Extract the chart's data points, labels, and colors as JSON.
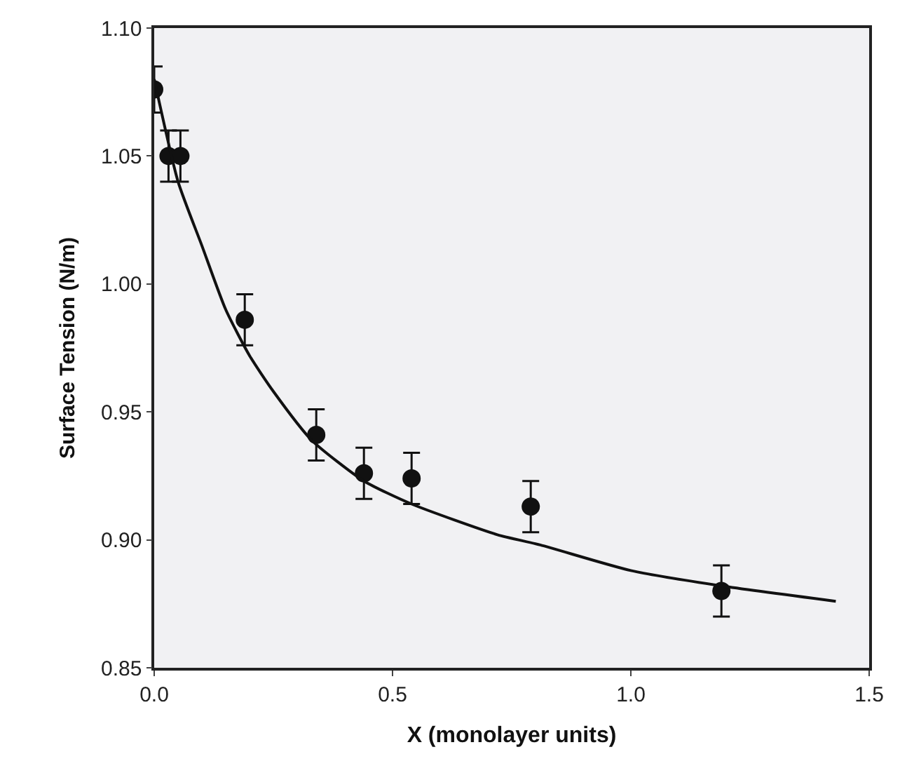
{
  "chart_data": {
    "type": "scatter",
    "xlabel": "X (monolayer units)",
    "ylabel": "Surface Tension (N/m)",
    "xlim": [
      0,
      1.5
    ],
    "xticks": [
      {
        "value": 0,
        "label": "0.0"
      },
      0.5,
      {
        "value": 1,
        "label": "1.0"
      },
      1.5
    ],
    "ylim": [
      0.85,
      1.1
    ],
    "yticks": [
      0.85,
      {
        "value": 0.9,
        "label": "0.90"
      },
      0.95,
      {
        "value": 1.0,
        "label": "1.00"
      },
      1.05,
      {
        "value": 1.1,
        "label": "1.10"
      }
    ],
    "series": [
      {
        "marker": "circle",
        "color": "#111111",
        "x": [
          0.0,
          0.03,
          0.055,
          0.19,
          0.34,
          0.44,
          0.54,
          0.79,
          1.19
        ],
        "values": [
          1.076,
          1.05,
          1.05,
          0.986,
          0.941,
          0.926,
          0.924,
          0.913,
          0.88
        ],
        "errors": [
          0.009,
          0.01,
          0.01,
          0.01,
          0.01,
          0.01,
          0.01,
          0.01,
          0.01
        ]
      },
      {
        "type": "line",
        "marker": "none",
        "line_style": "solid",
        "color": "#111111",
        "x": [
          0.0,
          0.05,
          0.1,
          0.15,
          0.2,
          0.25,
          0.33,
          0.44,
          0.54,
          0.72,
          0.81,
          1.0,
          1.19,
          1.43
        ],
        "values": [
          1.08,
          1.04,
          1.015,
          0.99,
          0.972,
          0.958,
          0.939,
          0.923,
          0.914,
          0.902,
          0.898,
          0.888,
          0.882,
          0.876
        ]
      }
    ]
  }
}
